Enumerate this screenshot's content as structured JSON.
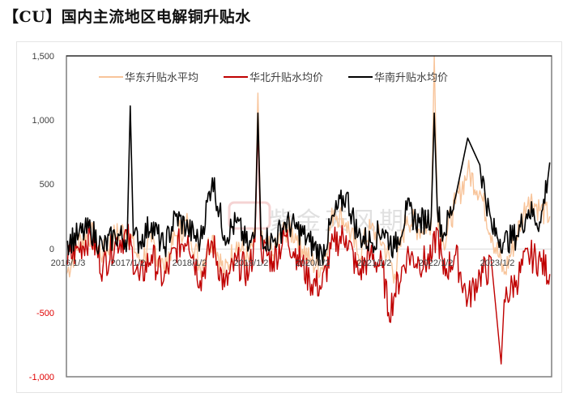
{
  "title": "【CU】国内主流地区电解铜升贴水",
  "watermark": "紫金天风期货",
  "colors": {
    "east": "#f8c49a",
    "north": "#c00000",
    "south": "#000000",
    "axis": "#7f7f7f",
    "negative_tick": "#e00000"
  },
  "chart_data": {
    "type": "line",
    "title": "【CU】国内主流地区电解铜升贴水",
    "xlabel": "",
    "ylabel": "",
    "ylim": [
      -1000,
      1500
    ],
    "yticks": [
      1500,
      1000,
      500,
      0,
      -500,
      -1000
    ],
    "ytick_labels": [
      "1,500",
      "1,000",
      "500",
      "0",
      "-500",
      "-1,000"
    ],
    "xtick_labels": [
      "2016/1/3",
      "2017/1/2",
      "2018/1/2",
      "2019/1/2",
      "2020/1/2",
      "2021/1/2",
      "2022/1/2",
      "2023/1/2"
    ],
    "x_range": [
      "2016/1/3",
      "2023/12"
    ],
    "grid": false,
    "legend_position": "top-inside",
    "legend": [
      "华东升贴水平均",
      "华北升贴水均价",
      "华南升贴水均价"
    ],
    "series": [
      {
        "name": "华东升贴水平均",
        "color": "#f8c49a",
        "x": [
          2016.0,
          2016.2,
          2016.4,
          2016.6,
          2016.8,
          2017.0,
          2017.2,
          2017.4,
          2017.6,
          2017.8,
          2018.0,
          2018.2,
          2018.4,
          2018.6,
          2018.8,
          2019.0,
          2019.1,
          2019.15,
          2019.2,
          2019.4,
          2019.6,
          2019.8,
          2020.0,
          2020.2,
          2020.4,
          2020.6,
          2020.8,
          2021.0,
          2021.2,
          2021.4,
          2021.6,
          2021.8,
          2022.0,
          2022.05,
          2022.1,
          2022.2,
          2022.4,
          2022.6,
          2022.8,
          2023.0,
          2023.2,
          2023.4,
          2023.6,
          2023.8,
          2023.95
        ],
        "values": [
          -200,
          50,
          120,
          -50,
          100,
          150,
          -100,
          50,
          -150,
          100,
          200,
          -150,
          100,
          -200,
          50,
          -100,
          80,
          1210,
          60,
          -50,
          150,
          100,
          -100,
          -150,
          300,
          200,
          -50,
          150,
          50,
          -200,
          250,
          150,
          200,
          1500,
          300,
          50,
          350,
          600,
          450,
          100,
          -200,
          100,
          400,
          300,
          250
        ]
      },
      {
        "name": "华北升贴水均价",
        "color": "#c00000",
        "x": [
          2016.0,
          2016.2,
          2016.4,
          2016.6,
          2016.8,
          2017.0,
          2017.2,
          2017.4,
          2017.6,
          2017.8,
          2018.0,
          2018.2,
          2018.4,
          2018.6,
          2018.8,
          2019.0,
          2019.1,
          2019.15,
          2019.2,
          2019.4,
          2019.6,
          2019.8,
          2020.0,
          2020.2,
          2020.4,
          2020.6,
          2020.8,
          2021.0,
          2021.2,
          2021.3,
          2021.4,
          2021.6,
          2021.8,
          2022.0,
          2022.1,
          2022.2,
          2022.4,
          2022.6,
          2022.8,
          2023.0,
          2023.15,
          2023.2,
          2023.4,
          2023.6,
          2023.8,
          2023.95
        ],
        "values": [
          -100,
          0,
          100,
          -150,
          50,
          100,
          -250,
          -50,
          -250,
          0,
          100,
          -250,
          50,
          -300,
          -100,
          -200,
          50,
          960,
          0,
          -100,
          100,
          -50,
          -250,
          -300,
          50,
          100,
          -200,
          -50,
          -150,
          -500,
          -350,
          -50,
          -100,
          -100,
          150,
          -200,
          -50,
          -400,
          -200,
          -150,
          -900,
          -400,
          -250,
          -50,
          -100,
          -200
        ]
      },
      {
        "name": "华南升贴水均价",
        "color": "#000000",
        "x": [
          2016.0,
          2016.2,
          2016.4,
          2016.6,
          2016.8,
          2017.0,
          2017.05,
          2017.1,
          2017.2,
          2017.4,
          2017.6,
          2017.8,
          2018.0,
          2018.2,
          2018.4,
          2018.6,
          2018.8,
          2019.0,
          2019.1,
          2019.15,
          2019.2,
          2019.4,
          2019.6,
          2019.8,
          2020.0,
          2020.2,
          2020.4,
          2020.6,
          2020.8,
          2021.0,
          2021.2,
          2021.4,
          2021.6,
          2021.8,
          2022.0,
          2022.05,
          2022.1,
          2022.2,
          2022.4,
          2022.6,
          2022.8,
          2023.0,
          2023.2,
          2023.4,
          2023.6,
          2023.8,
          2023.95
        ],
        "values": [
          50,
          100,
          150,
          0,
          100,
          80,
          1110,
          100,
          50,
          200,
          0,
          250,
          150,
          50,
          550,
          100,
          200,
          0,
          100,
          1055,
          100,
          50,
          200,
          150,
          50,
          -50,
          250,
          420,
          100,
          50,
          150,
          0,
          300,
          200,
          250,
          1055,
          300,
          100,
          400,
          860,
          650,
          150,
          50,
          100,
          300,
          200,
          670
        ]
      }
    ],
    "annotations": [
      "watermark: 紫金天风期货"
    ]
  },
  "legend": {
    "items": [
      {
        "label": "华东升贴水平均",
        "color": "#f8c49a"
      },
      {
        "label": "华北升贴水均价",
        "color": "#c00000"
      },
      {
        "label": "华南升贴水均价",
        "color": "#000000"
      }
    ]
  }
}
